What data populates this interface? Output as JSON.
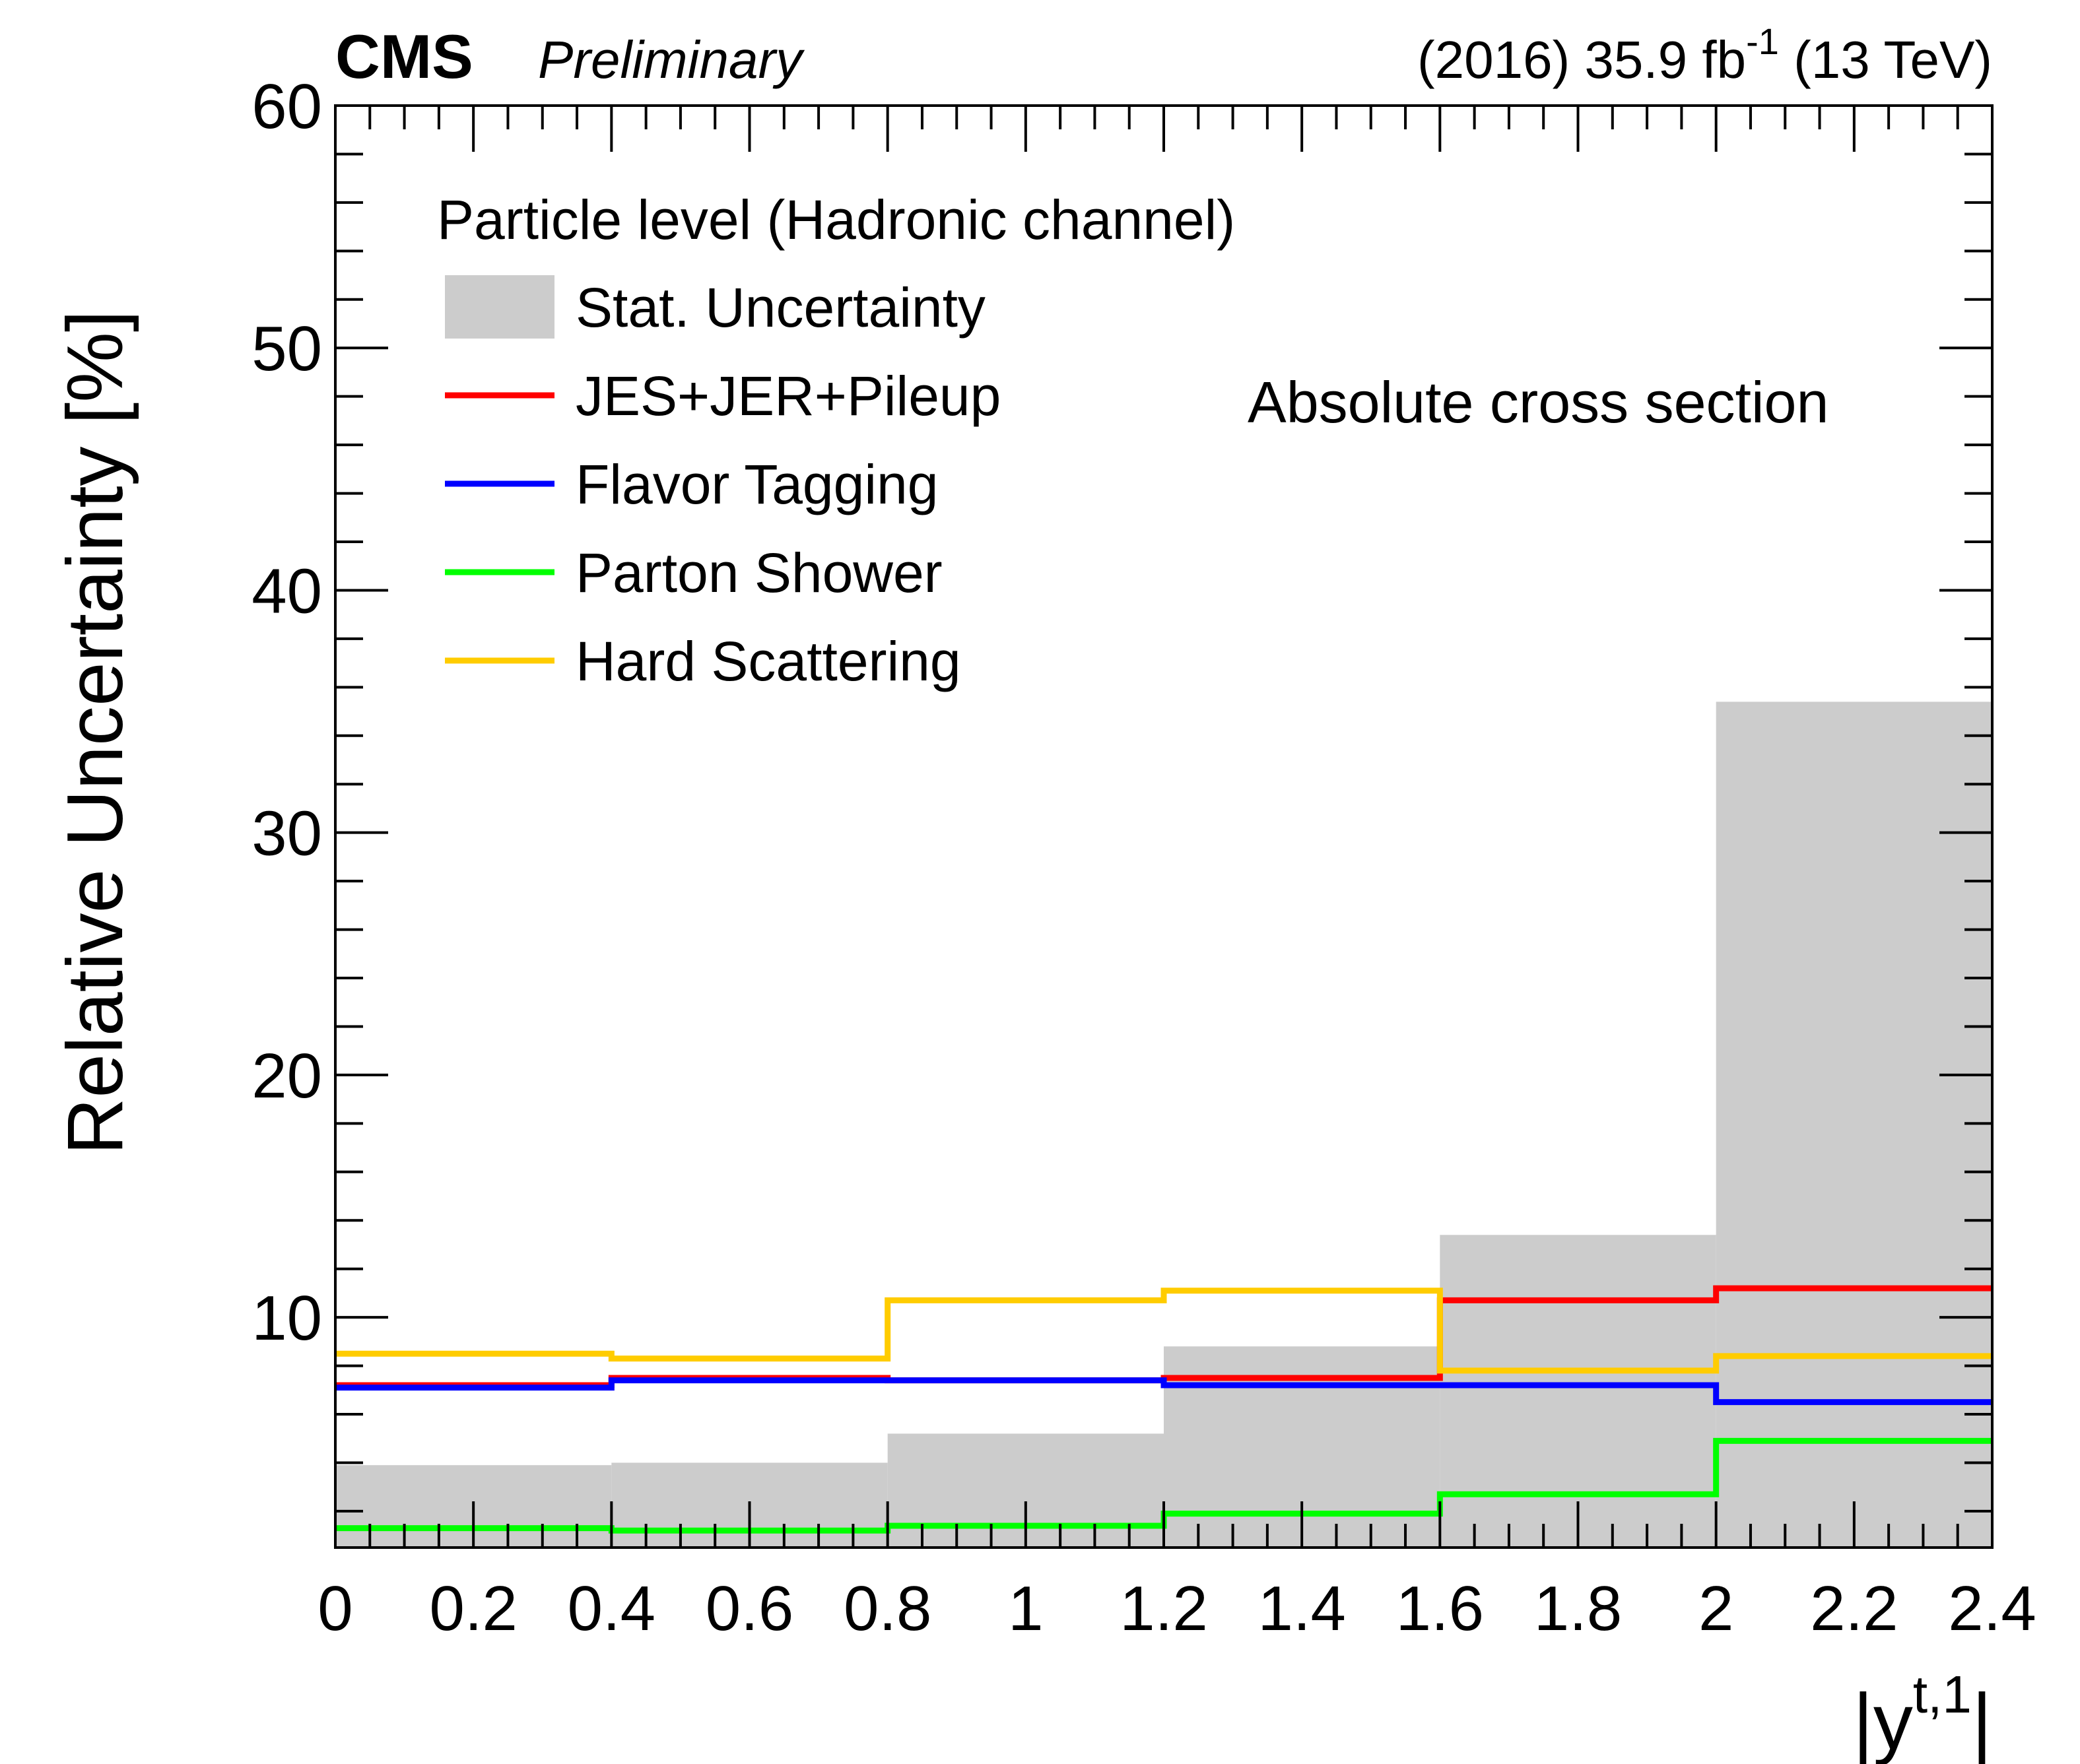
{
  "header": {
    "experiment": "CMS",
    "status": "Preliminary",
    "lumi_prefix": "(2016) 35.9 fb",
    "lumi_exp": "-1",
    "lumi_suffix": " (13 TeV)"
  },
  "chart_data": {
    "type": "step",
    "title": "",
    "xlabel": "|y",
    "xlabel_sup": "t,1",
    "xlabel_end": "|",
    "ylabel": "Relative Uncertainty [%]",
    "xlim": [
      0,
      2.4
    ],
    "ylim": [
      0.5,
      60
    ],
    "x_ticks": [
      "0",
      "0.2",
      "0.4",
      "0.6",
      "0.8",
      "1",
      "1.2",
      "1.4",
      "1.6",
      "1.8",
      "2",
      "2.2",
      "2.4"
    ],
    "y_ticks": [
      "10",
      "20",
      "30",
      "40",
      "50",
      "60"
    ],
    "bin_edges": [
      0,
      0.4,
      0.8,
      1.2,
      1.6,
      2.0,
      2.4
    ],
    "legend_header": "Particle level (Hadronic channel)",
    "annotation": "Absolute cross section",
    "series": [
      {
        "name": "Stat. Uncertainty",
        "kind": "fill",
        "color": "#cccccc",
        "values": [
          3.9,
          4.0,
          5.2,
          8.8,
          13.4,
          35.4
        ]
      },
      {
        "name": "JES+JER+Pileup",
        "kind": "line",
        "color": "#ff0000",
        "values": [
          7.2,
          7.5,
          7.4,
          7.5,
          10.7,
          11.2
        ]
      },
      {
        "name": "Flavor Tagging",
        "kind": "line",
        "color": "#0000ff",
        "values": [
          7.1,
          7.4,
          7.4,
          7.2,
          7.2,
          6.5
        ]
      },
      {
        "name": "Parton Shower",
        "kind": "line",
        "color": "#00ff00",
        "values": [
          1.3,
          1.2,
          1.4,
          1.9,
          2.7,
          4.9
        ]
      },
      {
        "name": "Hard Scattering",
        "kind": "line",
        "color": "#ffcc00",
        "values": [
          8.5,
          8.3,
          10.7,
          11.1,
          7.8,
          8.4
        ]
      }
    ]
  }
}
